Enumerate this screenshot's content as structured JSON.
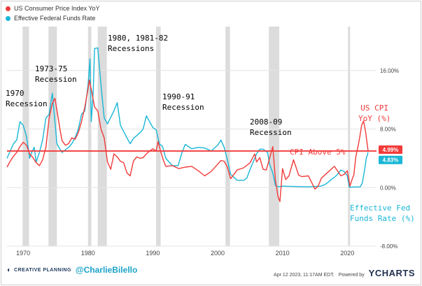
{
  "legend": [
    {
      "label": "US Consumer Price Index YoY",
      "color": "#f23b3b"
    },
    {
      "label": "Effective Federal Funds Rate",
      "color": "#19b6d6"
    }
  ],
  "annotations": {
    "r1970_a": "1970",
    "r1970_b": "Recession",
    "r1973_a": "1973-75",
    "r1973_b": "Recession",
    "r1980_a": "1980, 1981-82",
    "r1980_b": "Recessions",
    "r1990_a": "1990-91",
    "r1990_b": "Recession",
    "r2008_a": "2008-09",
    "r2008_b": "Recession",
    "cpi_above": "CPI Above 5%",
    "cpi_lbl_a": "US CPI",
    "cpi_lbl_b": "YoY (%)",
    "fed_lbl_a": "Effective Fed",
    "fed_lbl_b": "Funds Rate (%)"
  },
  "footer": {
    "brand": "CREATIVE PLANNING",
    "handle": "@CharlieBilello",
    "timestamp": "Apr 12 2023, 11:17AM EDT.",
    "powered": "Powered by",
    "ycharts": "YCHARTS"
  },
  "chart_data": {
    "type": "line",
    "title": "",
    "xlabel": "",
    "ylabel": "",
    "xlim": [
      1967.5,
      2024.5
    ],
    "ylim": [
      -8,
      22
    ],
    "x_ticks": [
      1970,
      1980,
      1990,
      2000,
      2010,
      2020
    ],
    "x_tick_labels": [
      "1970",
      "1980",
      "1990",
      "2000",
      "2010",
      "2020"
    ],
    "y_ticks": [
      -8,
      0,
      8,
      16
    ],
    "y_tick_labels": [
      "-8.00%",
      "0.00%",
      "8.00%",
      "16.00%"
    ],
    "grid": true,
    "legend_position": "top-left",
    "threshold": {
      "value": 5,
      "color": "#f23b3b"
    },
    "last_value_badges": [
      {
        "label": "4.99%",
        "value": 4.99,
        "color": "#f23b3b"
      },
      {
        "label": "4.83%",
        "value": 4.83,
        "color": "#19b6d6"
      }
    ],
    "recessions": [
      [
        1969.9,
        1970.9
      ],
      [
        1973.9,
        1975.2
      ],
      [
        1980.0,
        1980.5
      ],
      [
        1981.5,
        1982.9
      ],
      [
        1990.5,
        1991.2
      ],
      [
        2001.2,
        2001.9
      ],
      [
        2007.9,
        2009.5
      ],
      [
        2020.1,
        2020.4
      ]
    ],
    "series": [
      {
        "name": "US Consumer Price Index YoY",
        "color": "#f23b3b",
        "x": [
          1967.5,
          1968.0,
          1968.5,
          1969.0,
          1969.5,
          1970.0,
          1970.5,
          1971.0,
          1971.5,
          1972.0,
          1972.5,
          1973.0,
          1973.5,
          1974.0,
          1974.5,
          1974.9,
          1975.3,
          1975.7,
          1976.0,
          1976.5,
          1977.0,
          1977.5,
          1978.0,
          1978.5,
          1979.0,
          1979.5,
          1980.0,
          1980.2,
          1980.6,
          1981.0,
          1981.5,
          1982.0,
          1982.5,
          1983.0,
          1983.5,
          1984.0,
          1984.5,
          1985.0,
          1985.5,
          1986.0,
          1986.5,
          1987.0,
          1987.5,
          1988.0,
          1988.5,
          1989.0,
          1989.5,
          1990.0,
          1990.5,
          1990.8,
          1991.2,
          1991.6,
          1992.0,
          1993.0,
          1994.0,
          1995.0,
          1996.0,
          1997.0,
          1998.0,
          1999.0,
          2000.0,
          2000.5,
          2001.0,
          2001.5,
          2002.0,
          2002.5,
          2003.0,
          2004.0,
          2005.0,
          2005.7,
          2006.0,
          2006.5,
          2007.0,
          2007.5,
          2008.0,
          2008.5,
          2008.9,
          2009.3,
          2009.6,
          2010.0,
          2010.5,
          2011.0,
          2011.7,
          2012.5,
          2013.0,
          2014.0,
          2015.0,
          2015.5,
          2016.0,
          2017.0,
          2018.0,
          2019.0,
          2019.5,
          2020.0,
          2020.4,
          2020.8,
          2021.0,
          2021.3,
          2021.6,
          2021.9,
          2022.2,
          2022.5,
          2022.8,
          2023.0,
          2023.2
        ],
        "values": [
          2.8,
          3.6,
          4.3,
          4.8,
          5.6,
          6.2,
          5.8,
          4.6,
          4.1,
          3.4,
          3.0,
          3.8,
          5.5,
          9.5,
          11.5,
          12.2,
          10.0,
          7.8,
          6.4,
          5.8,
          6.0,
          6.8,
          6.6,
          7.5,
          9.0,
          11.0,
          13.5,
          14.7,
          13.0,
          11.0,
          10.5,
          8.0,
          6.8,
          3.5,
          2.5,
          4.6,
          4.2,
          3.6,
          3.4,
          2.0,
          1.6,
          3.6,
          4.2,
          4.0,
          4.1,
          4.6,
          5.0,
          5.3,
          5.0,
          6.3,
          5.0,
          3.8,
          2.9,
          3.0,
          2.6,
          2.8,
          2.9,
          2.3,
          1.6,
          2.2,
          3.2,
          3.7,
          3.6,
          2.8,
          1.2,
          1.8,
          2.4,
          2.7,
          3.4,
          4.6,
          3.5,
          4.1,
          2.5,
          2.4,
          4.0,
          5.6,
          1.1,
          -1.2,
          -1.9,
          2.6,
          1.1,
          1.6,
          3.8,
          1.7,
          1.5,
          1.6,
          -0.2,
          0.2,
          1.3,
          2.1,
          2.9,
          1.6,
          1.8,
          2.3,
          0.2,
          1.3,
          1.7,
          4.2,
          5.4,
          6.8,
          8.5,
          9.1,
          7.7,
          6.4,
          4.99
        ]
      },
      {
        "name": "Effective Federal Funds Rate",
        "color": "#19b6d6",
        "x": [
          1967.5,
          1968.0,
          1968.5,
          1969.0,
          1969.5,
          1970.0,
          1970.5,
          1971.0,
          1971.3,
          1971.7,
          1972.0,
          1972.5,
          1973.0,
          1973.5,
          1974.0,
          1974.5,
          1974.9,
          1975.2,
          1975.5,
          1976.0,
          1977.0,
          1977.5,
          1978.0,
          1978.5,
          1979.0,
          1979.5,
          1980.0,
          1980.3,
          1980.5,
          1980.8,
          1981.0,
          1981.5,
          1982.0,
          1982.5,
          1983.0,
          1984.0,
          1984.5,
          1985.0,
          1986.0,
          1986.5,
          1987.0,
          1988.0,
          1988.5,
          1989.0,
          1989.5,
          1990.0,
          1990.5,
          1991.0,
          1991.5,
          1992.0,
          1993.0,
          1993.9,
          1994.5,
          1995.0,
          1996.0,
          1997.0,
          1998.0,
          1999.0,
          2000.0,
          2000.5,
          2001.0,
          2001.5,
          2002.0,
          2003.0,
          2004.0,
          2004.5,
          2005.0,
          2006.0,
          2006.5,
          2007.0,
          2007.7,
          2008.0,
          2008.5,
          2008.9,
          2009.2,
          2010.0,
          2012.0,
          2014.0,
          2015.9,
          2016.5,
          2017.0,
          2017.5,
          2018.0,
          2018.5,
          2019.0,
          2019.5,
          2020.0,
          2020.3,
          2021.0,
          2022.0,
          2022.3,
          2022.5,
          2022.7,
          2022.9,
          2023.2
        ],
        "values": [
          4.0,
          5.0,
          6.0,
          6.5,
          9.0,
          8.5,
          7.0,
          4.0,
          4.8,
          5.5,
          3.5,
          4.8,
          6.5,
          9.5,
          10.0,
          12.9,
          9.0,
          6.0,
          5.5,
          4.8,
          5.5,
          6.0,
          6.8,
          8.0,
          10.0,
          10.5,
          14.0,
          17.6,
          9.0,
          13.0,
          19.0,
          19.1,
          14.0,
          9.5,
          8.7,
          10.5,
          11.6,
          8.5,
          6.8,
          6.0,
          6.7,
          7.5,
          8.0,
          9.8,
          9.0,
          8.2,
          7.9,
          6.0,
          5.6,
          4.0,
          3.0,
          3.0,
          4.8,
          5.9,
          5.3,
          5.5,
          5.4,
          5.0,
          5.8,
          6.5,
          5.5,
          3.8,
          1.8,
          1.0,
          1.0,
          1.3,
          2.5,
          4.6,
          5.25,
          5.25,
          4.8,
          3.2,
          2.0,
          0.3,
          0.1,
          0.2,
          0.15,
          0.1,
          0.2,
          0.4,
          0.7,
          1.1,
          1.4,
          1.8,
          2.4,
          2.2,
          1.6,
          0.05,
          0.08,
          0.1,
          0.6,
          1.6,
          2.6,
          3.9,
          4.83
        ]
      }
    ]
  }
}
